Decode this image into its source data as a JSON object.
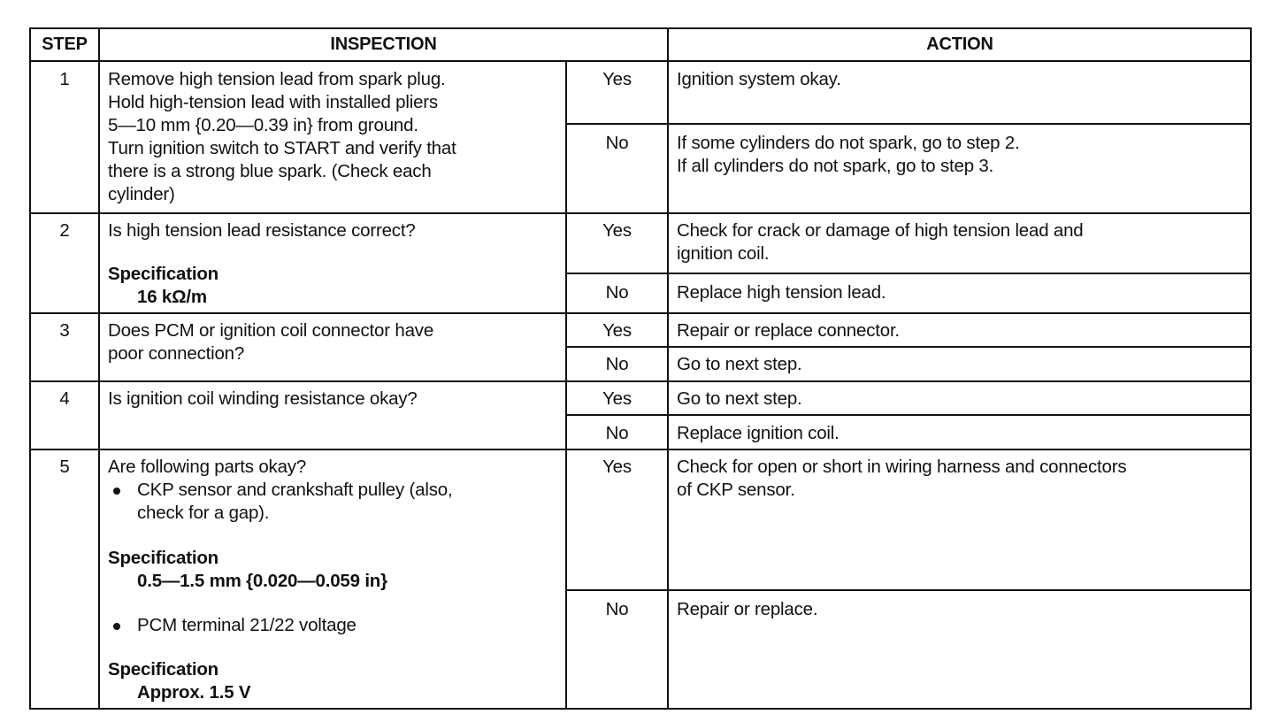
{
  "headers": {
    "step": "STEP",
    "inspection": "INSPECTION",
    "action": "ACTION"
  },
  "rows": [
    {
      "step": "1",
      "inspection": "Remove high tension lead from spark plug.\nHold high-tension lead with installed pliers\n5—10 mm {0.20—0.39 in} from ground.\nTurn ignition switch to START and verify that\nthere is a strong blue spark. (Check each\ncylinder)",
      "yes_label": "Yes",
      "yes_action": "Ignition system okay.",
      "no_label": "No",
      "no_action": "If some cylinders do not spark, go to step 2.\nIf all cylinders do not spark, go to step 3."
    },
    {
      "step": "2",
      "inspection": "Is high tension lead resistance correct?",
      "spec_label": "Specification",
      "spec_value": "16 kΩ/m",
      "yes_label": "Yes",
      "yes_action": "Check for crack or damage of high tension lead and\nignition coil.",
      "no_label": "No",
      "no_action": "Replace high tension lead."
    },
    {
      "step": "3",
      "inspection": "Does PCM or ignition coil connector have\npoor connection?",
      "yes_label": "Yes",
      "yes_action": "Repair or replace connector.",
      "no_label": "No",
      "no_action": "Go to next step."
    },
    {
      "step": "4",
      "inspection": "Is ignition coil winding resistance okay?",
      "yes_label": "Yes",
      "yes_action": "Go to next step.",
      "no_label": "No",
      "no_action": "Replace ignition coil."
    },
    {
      "step": "5",
      "inspection": "Are following parts okay?",
      "bullet1": "CKP sensor and crankshaft pulley (also,\ncheck for a gap).",
      "spec1_label": "Specification",
      "spec1_value": "0.5—1.5 mm {0.020—0.059 in}",
      "bullet2": "PCM terminal 21/22 voltage",
      "spec2_label": "Specification",
      "spec2_value": "Approx. 1.5 V",
      "yes_label": "Yes",
      "yes_action": "Check for open or short in wiring harness and connectors\nof CKP sensor.",
      "no_label": "No",
      "no_action": "Repair or replace."
    }
  ]
}
